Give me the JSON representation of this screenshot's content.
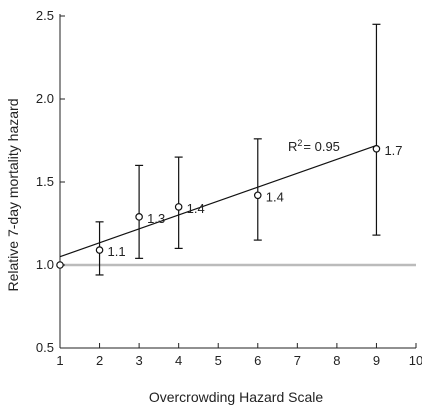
{
  "chart_data": {
    "type": "scatter",
    "title": "",
    "xlabel": "Overcrowding Hazard Scale",
    "ylabel": "Relative 7-day mortality hazard",
    "xlim": [
      1,
      10
    ],
    "ylim": [
      0.5,
      2.5
    ],
    "x_ticks": [
      1,
      2,
      3,
      4,
      5,
      6,
      7,
      8,
      9,
      10
    ],
    "y_ticks": [
      "0.5",
      "1.0",
      "1.5",
      "2.0",
      "2.5"
    ],
    "reference_line": {
      "y": 1.0,
      "color": "#bbbbbb"
    },
    "points": [
      {
        "x": 1,
        "y": 1.0,
        "lower": 1.0,
        "upper": 1.0,
        "label": ""
      },
      {
        "x": 2,
        "y": 1.09,
        "lower": 0.94,
        "upper": 1.26,
        "label": "1.1"
      },
      {
        "x": 3,
        "y": 1.29,
        "lower": 1.04,
        "upper": 1.6,
        "label": "1.3"
      },
      {
        "x": 4,
        "y": 1.35,
        "lower": 1.1,
        "upper": 1.65,
        "label": "1.4"
      },
      {
        "x": 6,
        "y": 1.42,
        "lower": 1.15,
        "upper": 1.76,
        "label": "1.4"
      },
      {
        "x": 9,
        "y": 1.7,
        "lower": 1.18,
        "upper": 2.45,
        "label": "1.7"
      }
    ],
    "fit_line": {
      "x_start": 1,
      "y_start": 1.05,
      "x_end": 9,
      "y_end": 1.72
    },
    "r2_base": "R",
    "r2_sup": "2",
    "r2_value": "= 0.95",
    "grid": false
  }
}
